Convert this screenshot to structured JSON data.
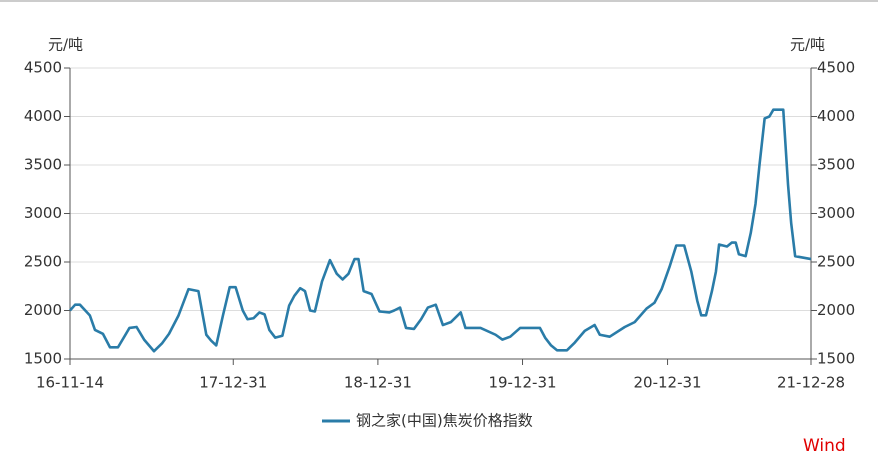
{
  "chart_data": {
    "type": "line",
    "y_label": "元/吨",
    "y2_label": "元/吨",
    "x": [
      "16-11-14",
      "16-11-27",
      "16-12-09",
      "17-01-03",
      "17-01-16",
      "17-02-05",
      "17-02-23",
      "17-03-15",
      "17-04-13",
      "17-05-01",
      "17-05-20",
      "17-06-14",
      "17-07-04",
      "17-07-22",
      "17-08-15",
      "17-09-09",
      "17-10-04",
      "17-10-24",
      "17-11-05",
      "17-11-18",
      "17-12-05",
      "17-12-22",
      "18-01-06",
      "18-01-24",
      "18-02-05",
      "18-02-20",
      "18-03-07",
      "18-03-20",
      "18-04-01",
      "18-04-16",
      "18-05-04",
      "18-05-21",
      "18-06-03",
      "18-06-18",
      "18-06-30",
      "18-07-13",
      "18-07-25",
      "18-08-12",
      "18-09-01",
      "18-09-18",
      "18-10-03",
      "18-10-18",
      "18-11-02",
      "18-11-12",
      "18-11-25",
      "18-12-15",
      "19-01-04",
      "19-01-29",
      "19-02-10",
      "19-02-25",
      "19-03-12",
      "19-04-01",
      "19-04-19",
      "19-05-06",
      "19-05-26",
      "19-06-13",
      "19-07-03",
      "19-07-28",
      "19-08-09",
      "19-09-16",
      "19-10-24",
      "19-11-10",
      "19-11-30",
      "19-12-25",
      "20-02-13",
      "20-02-26",
      "20-03-12",
      "20-03-27",
      "20-04-21",
      "20-05-11",
      "20-06-05",
      "20-06-30",
      "20-07-13",
      "20-08-07",
      "20-09-14",
      "20-10-09",
      "20-11-08",
      "20-11-28",
      "20-12-16",
      "21-01-05",
      "21-01-22",
      "21-02-11",
      "21-03-01",
      "21-03-16",
      "21-03-26",
      "21-04-07",
      "21-04-22",
      "21-05-02",
      "21-05-10",
      "21-05-30",
      "21-06-11",
      "21-06-21",
      "21-06-29",
      "21-07-16",
      "21-07-29",
      "21-08-10",
      "21-08-20",
      "21-09-02",
      "21-09-14",
      "21-09-24",
      "21-10-19",
      "21-10-31",
      "21-11-08",
      "21-11-18",
      "21-12-28"
    ],
    "series": [
      {
        "name": "钢之家(中国)焦炭价格指数",
        "color": "#2a7ca8",
        "values": [
          2000,
          2060,
          2060,
          1950,
          1800,
          1760,
          1620,
          1620,
          1820,
          1830,
          1700,
          1580,
          1660,
          1760,
          1950,
          2220,
          2200,
          1750,
          1690,
          1640,
          1950,
          2240,
          2240,
          2000,
          1910,
          1920,
          1980,
          1960,
          1800,
          1720,
          1740,
          2050,
          2150,
          2230,
          2200,
          2000,
          1990,
          2300,
          2520,
          2380,
          2320,
          2380,
          2530,
          2530,
          2200,
          2170,
          1990,
          1980,
          2000,
          2030,
          1820,
          1810,
          1910,
          2030,
          2060,
          1850,
          1880,
          1980,
          1820,
          1820,
          1750,
          1700,
          1730,
          1820,
          1820,
          1720,
          1640,
          1590,
          1590,
          1670,
          1790,
          1850,
          1750,
          1730,
          1830,
          1880,
          2020,
          2080,
          2220,
          2450,
          2670,
          2670,
          2400,
          2100,
          1950,
          1950,
          2200,
          2400,
          2680,
          2660,
          2700,
          2700,
          2580,
          2560,
          2800,
          3100,
          3500,
          3980,
          4000,
          4070,
          4070,
          3300,
          2900,
          2560,
          2530
        ]
      }
    ],
    "xlim": [
      "16-11-14",
      "21-12-28"
    ],
    "xticks": [
      "16-11-14",
      "17-12-31",
      "18-12-31",
      "19-12-31",
      "20-12-31",
      "21-12-28"
    ],
    "ylim": [
      1500,
      4500
    ],
    "yticks": [
      1500,
      2000,
      2500,
      3000,
      3500,
      4000,
      4500
    ],
    "y2lim": [
      1500,
      4500
    ],
    "y2ticks": [
      1500,
      2000,
      2500,
      3000,
      3500,
      4000,
      4500
    ],
    "grid": true,
    "legend": "bottom",
    "source": "Wind"
  }
}
